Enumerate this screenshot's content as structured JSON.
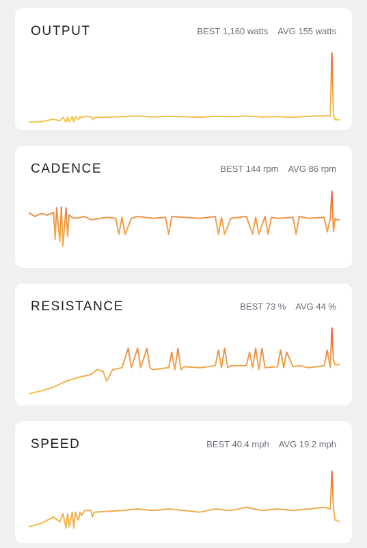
{
  "metrics": [
    {
      "title": "OUTPUT",
      "best": "BEST 1,160 watts",
      "avg": "AVG 155 watts"
    },
    {
      "title": "CADENCE",
      "best": "BEST 144 rpm",
      "avg": "AVG 86 rpm"
    },
    {
      "title": "RESISTANCE",
      "best": "BEST 73 %",
      "avg": "AVG 44 %"
    },
    {
      "title": "SPEED",
      "best": "BEST 40.4 mph",
      "avg": "AVG 19.2 mph"
    }
  ],
  "colors": {
    "low": "#f5c84a",
    "mid": "#ef9a45",
    "high": "#e45544",
    "card": "#ffffff",
    "background": "#f0f0f2",
    "stat_text": "#6b6e7a"
  },
  "chart_data": [
    {
      "type": "line",
      "ylim": [
        0,
        1200
      ],
      "x": [
        0,
        0.04,
        0.08,
        0.1,
        0.11,
        0.12,
        0.125,
        0.13,
        0.14,
        0.145,
        0.15,
        0.16,
        0.165,
        0.17,
        0.18,
        0.2,
        0.205,
        0.21,
        0.3,
        0.35,
        0.4,
        0.45,
        0.5,
        0.55,
        0.6,
        0.65,
        0.7,
        0.75,
        0.8,
        0.85,
        0.9,
        0.95,
        0.97,
        0.975,
        0.98,
        0.985,
        0.99,
        1.0
      ],
      "values": [
        20,
        25,
        70,
        40,
        100,
        20,
        100,
        25,
        110,
        20,
        110,
        60,
        110,
        90,
        115,
        110,
        60,
        95,
        110,
        120,
        105,
        115,
        110,
        100,
        115,
        110,
        120,
        105,
        110,
        100,
        115,
        125,
        120,
        1160,
        150,
        60,
        60,
        55
      ]
    },
    {
      "type": "line",
      "ylim": [
        0,
        150
      ],
      "x": [
        0,
        0.02,
        0.04,
        0.06,
        0.08,
        0.085,
        0.09,
        0.1,
        0.105,
        0.11,
        0.12,
        0.125,
        0.13,
        0.14,
        0.15,
        0.18,
        0.2,
        0.25,
        0.28,
        0.29,
        0.3,
        0.31,
        0.33,
        0.35,
        0.4,
        0.44,
        0.45,
        0.46,
        0.5,
        0.55,
        0.6,
        0.61,
        0.62,
        0.63,
        0.65,
        0.7,
        0.72,
        0.73,
        0.74,
        0.76,
        0.77,
        0.78,
        0.8,
        0.85,
        0.86,
        0.87,
        0.9,
        0.95,
        0.96,
        0.97,
        0.975,
        0.98,
        0.985,
        0.99,
        1.0
      ],
      "values": [
        100,
        92,
        98,
        95,
        100,
        45,
        110,
        40,
        112,
        30,
        110,
        50,
        95,
        90,
        88,
        92,
        85,
        90,
        88,
        55,
        90,
        55,
        88,
        92,
        88,
        90,
        55,
        92,
        90,
        88,
        92,
        55,
        90,
        55,
        88,
        92,
        55,
        90,
        55,
        92,
        55,
        90,
        88,
        90,
        55,
        92,
        88,
        90,
        60,
        88,
        144,
        60,
        88,
        85,
        85
      ]
    },
    {
      "type": "line",
      "ylim": [
        0,
        75
      ],
      "x": [
        0,
        0.04,
        0.08,
        0.12,
        0.16,
        0.2,
        0.22,
        0.24,
        0.25,
        0.27,
        0.3,
        0.32,
        0.33,
        0.35,
        0.36,
        0.38,
        0.39,
        0.4,
        0.45,
        0.46,
        0.47,
        0.48,
        0.49,
        0.5,
        0.55,
        0.6,
        0.61,
        0.62,
        0.63,
        0.64,
        0.65,
        0.7,
        0.71,
        0.72,
        0.73,
        0.74,
        0.75,
        0.76,
        0.8,
        0.81,
        0.82,
        0.83,
        0.85,
        0.87,
        0.9,
        0.95,
        0.96,
        0.97,
        0.975,
        0.98,
        0.985,
        0.99,
        1.0
      ],
      "values": [
        5,
        8,
        12,
        18,
        22,
        25,
        30,
        28,
        18,
        30,
        32,
        52,
        32,
        52,
        32,
        52,
        32,
        30,
        32,
        48,
        30,
        52,
        30,
        33,
        32,
        34,
        50,
        32,
        52,
        32,
        34,
        34,
        48,
        32,
        52,
        30,
        52,
        32,
        33,
        50,
        32,
        48,
        33,
        34,
        32,
        34,
        50,
        32,
        73,
        40,
        35,
        35,
        35
      ]
    },
    {
      "type": "line",
      "ylim": [
        0,
        45
      ],
      "x": [
        0,
        0.04,
        0.08,
        0.1,
        0.11,
        0.12,
        0.125,
        0.13,
        0.14,
        0.145,
        0.15,
        0.16,
        0.165,
        0.17,
        0.18,
        0.2,
        0.205,
        0.21,
        0.3,
        0.35,
        0.4,
        0.45,
        0.5,
        0.55,
        0.6,
        0.65,
        0.7,
        0.75,
        0.8,
        0.85,
        0.9,
        0.95,
        0.97,
        0.975,
        0.98,
        0.985,
        0.99,
        1.0
      ],
      "values": [
        6,
        8,
        12,
        9,
        14,
        5,
        14,
        6,
        15,
        5,
        15,
        10,
        15,
        13,
        16,
        16,
        12,
        15,
        16,
        17,
        16,
        17,
        16,
        15,
        17,
        16,
        18,
        16,
        17,
        16,
        17,
        18,
        17,
        40.4,
        18,
        10,
        10,
        9
      ]
    }
  ]
}
